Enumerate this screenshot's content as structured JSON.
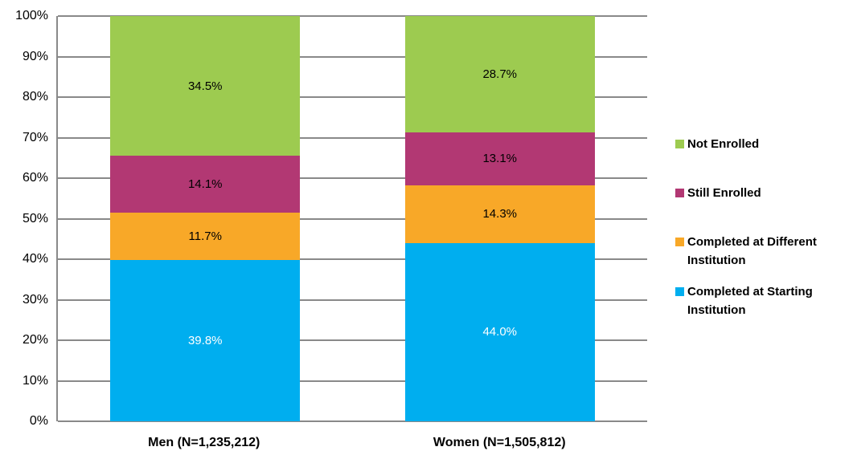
{
  "chart_data": {
    "type": "bar",
    "subtype": "stacked-100-percent",
    "title": "",
    "xlabel": "",
    "ylabel": "",
    "ylim": [
      0,
      100
    ],
    "grid": "horizontal-major-every-10",
    "legend_position": "right",
    "y_ticks": [
      "0%",
      "10%",
      "20%",
      "30%",
      "40%",
      "50%",
      "60%",
      "70%",
      "80%",
      "90%",
      "100%"
    ],
    "categories": [
      "Men (N=1,235,212)",
      "Women (N=1,505,812)"
    ],
    "series": [
      {
        "name": "Completed at Starting Institution",
        "color": "#00AEEF",
        "label_color": "#FFFFFF",
        "values": [
          39.8,
          44.0
        ]
      },
      {
        "name": "Completed at Different Institution",
        "color": "#F8A828",
        "label_color": "#000000",
        "values": [
          11.7,
          14.3
        ]
      },
      {
        "name": "Still Enrolled",
        "color": "#B23873",
        "label_color": "#000000",
        "values": [
          14.1,
          13.1
        ]
      },
      {
        "name": "Not Enrolled",
        "color": "#9DCB50",
        "label_color": "#000000",
        "values": [
          34.5,
          28.7
        ]
      }
    ],
    "data_label_format": "0.0%",
    "colors": {
      "gridline": "#898989",
      "axis_line": "#898989",
      "text": "#000000",
      "background": "#FFFFFF"
    },
    "notes": {
      "stack_order_bottom_to_top": [
        "Completed at Starting Institution",
        "Completed at Different Institution",
        "Still Enrolled",
        "Not Enrolled"
      ],
      "legend_order_top_to_bottom": [
        "Not Enrolled",
        "Still Enrolled",
        "Completed at Different Institution",
        "Completed at Starting Institution"
      ]
    }
  }
}
